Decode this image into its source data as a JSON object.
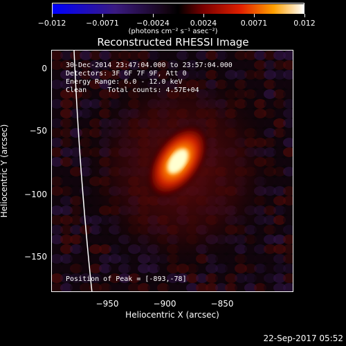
{
  "title": "Reconstructed RHESSI Image",
  "colorbar": {
    "ticks": [
      "−0.012",
      "−0.0071",
      "−0.0024",
      "0.0024",
      "0.0071",
      "0.012"
    ],
    "units": "(photons cm⁻² s⁻¹ asec⁻²)"
  },
  "info": {
    "time_range": "30-Dec-2014 23:47:04.000 to 23:57:04.000",
    "detectors": "Detectors: 3F 6F 7F 9F, Att 0",
    "energy_range": "Energy Range: 6.0 - 12.0 keV",
    "method": "Clean     Total counts: 4.57E+04",
    "peak": "Position of Peak = [-893,-78]"
  },
  "axes": {
    "x_title": "Heliocentric X (arcsec)",
    "y_title": "Heliocentric Y (arcsec)",
    "x_ticks": [
      "−950",
      "−900",
      "−850"
    ],
    "y_ticks": [
      "0",
      "−50",
      "−100",
      "−150"
    ]
  },
  "timestamp": "22-Sep-2017 05:52"
}
